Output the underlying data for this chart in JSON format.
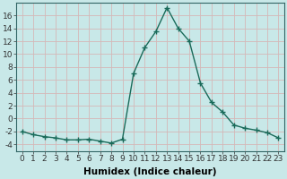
{
  "x": [
    0,
    1,
    2,
    3,
    4,
    5,
    6,
    7,
    8,
    9,
    10,
    11,
    12,
    13,
    14,
    15,
    16,
    17,
    18,
    19,
    20,
    21,
    22,
    23
  ],
  "y": [
    -2.0,
    -2.5,
    -2.8,
    -3.0,
    -3.3,
    -3.3,
    -3.2,
    -3.5,
    -3.8,
    -3.2,
    7.0,
    11.0,
    13.5,
    17.2,
    14.0,
    12.0,
    5.5,
    2.5,
    1.0,
    -1.0,
    -1.5,
    -1.8,
    -2.2,
    -3.0
  ],
  "line_color": "#1a6b5a",
  "marker": "+",
  "marker_size": 4,
  "marker_lw": 1.0,
  "line_width": 1.0,
  "bg_color": "#c8e8e8",
  "grid_color": "#b0d0d0",
  "xlabel": "Humidex (Indice chaleur)",
  "ylim": [
    -5,
    18
  ],
  "xlim": [
    -0.5,
    23.5
  ],
  "yticks": [
    -4,
    -2,
    0,
    2,
    4,
    6,
    8,
    10,
    12,
    14,
    16
  ],
  "xticks": [
    0,
    1,
    2,
    3,
    4,
    5,
    6,
    7,
    8,
    9,
    10,
    11,
    12,
    13,
    14,
    15,
    16,
    17,
    18,
    19,
    20,
    21,
    22,
    23
  ],
  "xtick_labels": [
    "0",
    "1",
    "2",
    "3",
    "4",
    "5",
    "6",
    "7",
    "8",
    "9",
    "10",
    "11",
    "12",
    "13",
    "14",
    "15",
    "16",
    "17",
    "18",
    "19",
    "20",
    "21",
    "22",
    "23"
  ],
  "font_size": 6.5,
  "xlabel_font_size": 7.5,
  "xlabel_bold": true
}
